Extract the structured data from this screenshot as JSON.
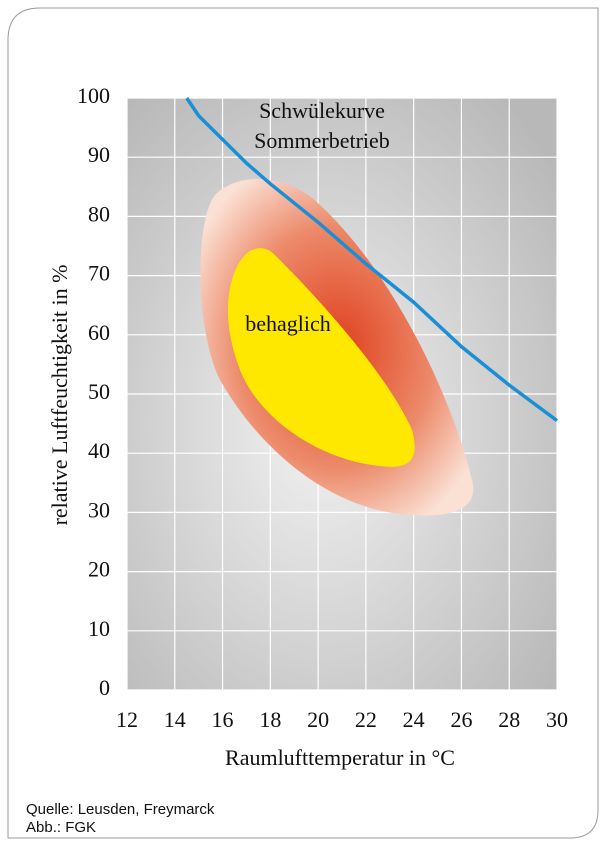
{
  "chart_data": {
    "type": "line",
    "x_label": "Raumlufttemperatur in °C",
    "y_label": "relative Luftfeuchtigkeit in %",
    "annotations": [
      "Schwülekurve",
      "Sommerbetrieb",
      "behaglich"
    ],
    "series": [
      {
        "color": "#1a8fd6",
        "x": [
          14.5,
          15,
          16,
          17,
          18,
          20,
          22,
          24,
          26,
          28,
          30
        ],
        "values": [
          100,
          97,
          93,
          89,
          85.5,
          79,
          72,
          65.5,
          58,
          51.5,
          45.5
        ]
      }
    ],
    "xlim": [
      12,
      30
    ],
    "xticks": [
      12,
      14,
      16,
      18,
      20,
      22,
      24,
      26,
      28,
      30
    ],
    "ylim": [
      0,
      100
    ],
    "yticks": [
      0,
      10,
      20,
      30,
      40,
      50,
      60,
      70,
      80,
      90,
      100
    ],
    "grid": true
  },
  "source": "Quelle: Leusden, Freymarck",
  "credit": "Abb.: FGK"
}
